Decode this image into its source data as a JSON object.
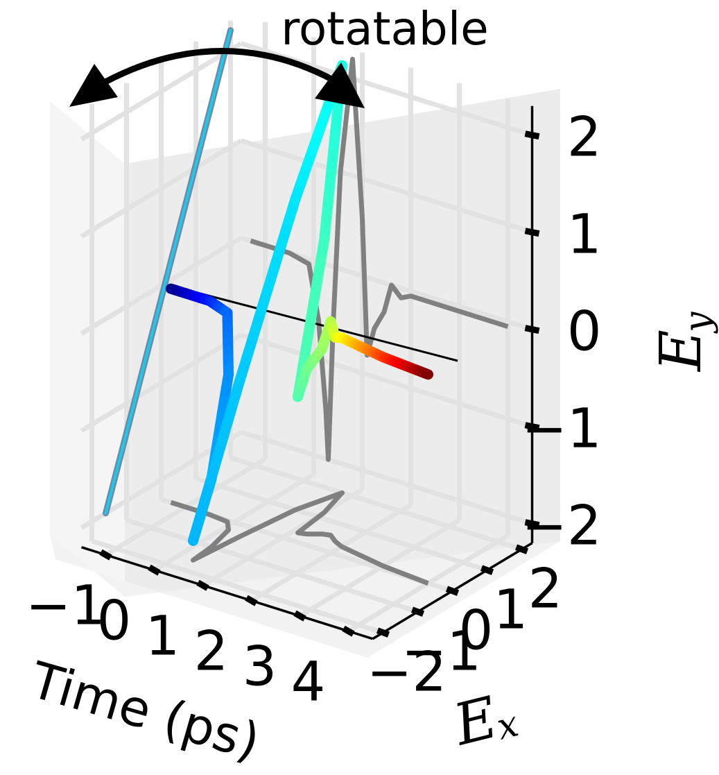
{
  "chart_data": {
    "type": "line",
    "projection": "3d",
    "annotation": "rotatable",
    "axes": {
      "x": {
        "label": "Time (ps)",
        "ticks": [
          "−1",
          "0",
          "1",
          "2",
          "3",
          "4"
        ],
        "lim": [
          -1.5,
          4.5
        ]
      },
      "y": {
        "label": "E",
        "label_subscript": "x",
        "ticks": [
          "−2",
          "−1",
          "0",
          "1",
          "2"
        ],
        "lim": [
          -2.3,
          2.3
        ]
      },
      "z": {
        "label": "E",
        "label_subscript": "y",
        "ticks": [
          "−2",
          "−1",
          "0",
          "1",
          "2"
        ],
        "lim": [
          -2.2,
          2.3
        ]
      }
    },
    "grid": true,
    "colormap": "jet",
    "series": [
      {
        "role": "trajectory (color = time)",
        "t": [
          -1.3,
          -0.5,
          -0.1,
          0.1,
          0.25,
          0.3,
          0.4,
          0.55,
          0.8,
          1.0,
          1.1,
          1.25,
          1.45,
          1.6,
          1.8,
          2.0,
          2.5,
          3.0,
          3.5,
          4.0
        ],
        "ex": [
          0.0,
          0.0,
          -0.05,
          -0.3,
          -1.0,
          -1.6,
          -0.4,
          1.0,
          2.0,
          1.2,
          0.3,
          0.35,
          0.5,
          0.55,
          0.4,
          0.3,
          0.2,
          0.1,
          0.05,
          0.0
        ],
        "ey": [
          0.0,
          0.0,
          -0.05,
          -0.6,
          -1.5,
          -2.0,
          -0.6,
          1.0,
          2.2,
          0.6,
          -0.8,
          -0.5,
          -0.3,
          0.0,
          -0.1,
          -0.05,
          -0.05,
          -0.05,
          -0.05,
          -0.05
        ]
      },
      {
        "role": "projection on Time–Ey wall",
        "color": "#808080",
        "t": [
          -1.3,
          -0.5,
          -0.1,
          0.1,
          0.25,
          0.3,
          0.4,
          0.55,
          0.8,
          1.0,
          1.1,
          1.25,
          1.45,
          1.6,
          1.8,
          2.0,
          2.5,
          3.0,
          3.5,
          4.0
        ],
        "ey": [
          0.0,
          0.0,
          -0.05,
          -0.6,
          -1.5,
          -2.0,
          -0.6,
          1.0,
          2.2,
          0.6,
          -0.8,
          -0.5,
          -0.3,
          0.0,
          -0.1,
          -0.05,
          -0.05,
          -0.05,
          -0.05,
          -0.05
        ]
      },
      {
        "role": "projection on Time–Ex floor",
        "color": "#808080",
        "t": [
          -1.3,
          -0.5,
          -0.1,
          0.1,
          0.25,
          0.3,
          0.4,
          0.55,
          0.8,
          1.0,
          1.1,
          1.25,
          1.45,
          1.6,
          1.8,
          2.0,
          2.5,
          3.0,
          3.5,
          4.0
        ],
        "ex": [
          0.0,
          0.0,
          -0.05,
          -0.3,
          -1.0,
          -1.6,
          -0.4,
          1.0,
          2.0,
          1.2,
          0.3,
          0.35,
          0.5,
          0.55,
          0.4,
          0.3,
          0.2,
          0.1,
          0.05,
          0.0
        ]
      },
      {
        "role": "projection on Ex–Ey wall",
        "ex": [
          -1.6,
          2.0
        ],
        "ey": [
          -2.0,
          2.2
        ]
      }
    ]
  }
}
